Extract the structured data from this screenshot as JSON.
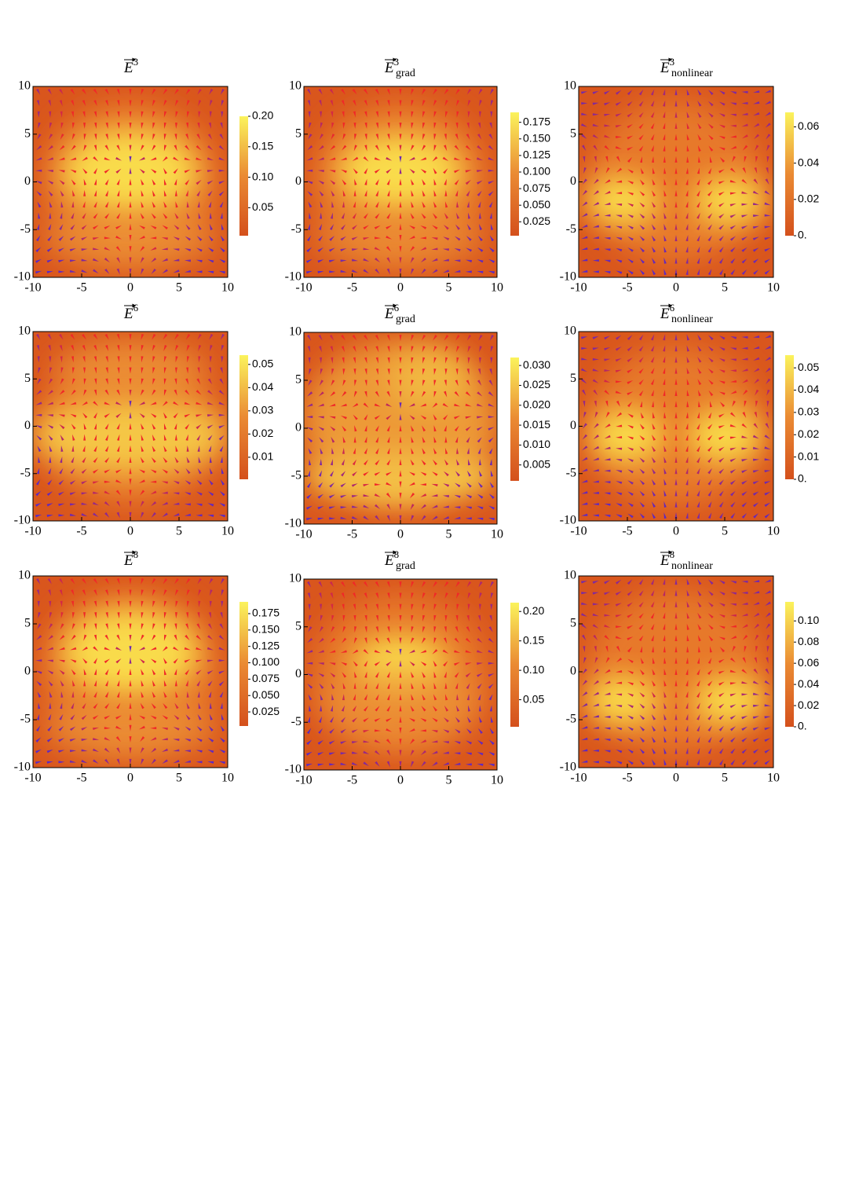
{
  "chart_data": [
    {
      "type": "vector-field",
      "title": {
        "text": "E",
        "sup": "3"
      },
      "xlim": [
        -10,
        10
      ],
      "ylim": [
        -10,
        10
      ],
      "xticks": [
        -10,
        -5,
        0,
        5,
        10
      ],
      "yticks": [
        -10,
        -5,
        0,
        5,
        10
      ],
      "colorbar": {
        "lim": [
          0.004,
          0.2
        ],
        "ticks": [
          0.05,
          {
            "value": 0.1,
            "label": "0.10"
          },
          0.15,
          {
            "value": 0.2,
            "label": "0.20"
          }
        ]
      }
    },
    {
      "type": "vector-field",
      "title": {
        "text": "E",
        "sup": "3",
        "sub": "grad"
      },
      "xlim": [
        -10,
        10
      ],
      "ylim": [
        -10,
        10
      ],
      "xticks": [
        -10,
        -5,
        0,
        5,
        10
      ],
      "yticks": [
        -10,
        -5,
        0,
        5,
        10
      ],
      "colorbar": {
        "lim": [
          0.004,
          0.19
        ],
        "ticks": [
          0.025,
          {
            "value": 0.05,
            "label": "0.050"
          },
          0.075,
          {
            "value": 0.1,
            "label": "0.100"
          },
          0.125,
          {
            "value": 0.15,
            "label": "0.150"
          },
          0.175
        ]
      }
    },
    {
      "type": "vector-field",
      "title": {
        "text": "E",
        "sup": "3",
        "sub": "nonlinear"
      },
      "xlim": [
        -10,
        10
      ],
      "ylim": [
        -10,
        10
      ],
      "xticks": [
        -10,
        -5,
        0,
        5,
        10
      ],
      "yticks": [
        -10,
        -5,
        0,
        5,
        10
      ],
      "colorbar": {
        "lim": [
          0,
          0.068
        ],
        "ticks": [
          {
            "value": 0,
            "label": "0."
          },
          0.02,
          0.04,
          0.06
        ]
      }
    },
    {
      "type": "vector-field",
      "title": {
        "text": "E",
        "sup": "6"
      },
      "xlim": [
        -10,
        10
      ],
      "ylim": [
        -10,
        10
      ],
      "xticks": [
        -10,
        -5,
        0,
        5,
        10
      ],
      "yticks": [
        -10,
        -5,
        0,
        5,
        10
      ],
      "colorbar": {
        "lim": [
          0.0005,
          0.054
        ],
        "ticks": [
          0.01,
          0.02,
          0.03,
          0.04,
          0.05
        ]
      }
    },
    {
      "type": "vector-field",
      "title": {
        "text": "E",
        "sup": "6",
        "sub": "grad"
      },
      "xlim": [
        -10,
        10
      ],
      "ylim": [
        -10,
        10
      ],
      "xticks": [
        -10,
        -5,
        0,
        5,
        10
      ],
      "yticks": [
        -10,
        -5,
        0,
        5,
        10
      ],
      "colorbar": {
        "lim": [
          0.001,
          0.032
        ],
        "ticks": [
          0.005,
          {
            "value": 0.01,
            "label": "0.010"
          },
          0.015,
          {
            "value": 0.02,
            "label": "0.020"
          },
          0.025,
          {
            "value": 0.03,
            "label": "0.030"
          }
        ]
      }
    },
    {
      "type": "vector-field",
      "title": {
        "text": "E",
        "sup": "6",
        "sub": "nonlinear"
      },
      "xlim": [
        -10,
        10
      ],
      "ylim": [
        -10,
        10
      ],
      "xticks": [
        -10,
        -5,
        0,
        5,
        10
      ],
      "yticks": [
        -10,
        -5,
        0,
        5,
        10
      ],
      "colorbar": {
        "lim": [
          0,
          0.0557
        ],
        "ticks": [
          {
            "value": 0,
            "label": "0."
          },
          0.01,
          0.02,
          0.03,
          0.04,
          0.05
        ]
      }
    },
    {
      "type": "vector-field",
      "title": {
        "text": "E",
        "sup": "8"
      },
      "xlim": [
        -10,
        10
      ],
      "ylim": [
        -10,
        10
      ],
      "xticks": [
        -10,
        -5,
        0,
        5,
        10
      ],
      "yticks": [
        -10,
        -5,
        0,
        5,
        10
      ],
      "colorbar": {
        "lim": [
          0.0035,
          0.193
        ],
        "ticks": [
          0.025,
          {
            "value": 0.05,
            "label": "0.050"
          },
          0.075,
          {
            "value": 0.1,
            "label": "0.100"
          },
          0.125,
          {
            "value": 0.15,
            "label": "0.150"
          },
          0.175
        ]
      }
    },
    {
      "type": "vector-field",
      "title": {
        "text": "E",
        "sup": "8",
        "sub": "grad"
      },
      "xlim": [
        -10,
        10
      ],
      "ylim": [
        -10,
        10
      ],
      "xticks": [
        -10,
        -5,
        0,
        5,
        10
      ],
      "yticks": [
        -10,
        -5,
        0,
        5,
        10
      ],
      "colorbar": {
        "lim": [
          0.004,
          0.215
        ],
        "ticks": [
          0.05,
          {
            "value": 0.1,
            "label": "0.10"
          },
          0.15,
          {
            "value": 0.2,
            "label": "0.20"
          }
        ]
      }
    },
    {
      "type": "vector-field",
      "title": {
        "text": "E",
        "sup": "8",
        "sub": "nonlinear"
      },
      "xlim": [
        -10,
        10
      ],
      "ylim": [
        -10,
        10
      ],
      "xticks": [
        -10,
        -5,
        0,
        5,
        10
      ],
      "yticks": [
        -10,
        -5,
        0,
        5,
        10
      ],
      "colorbar": {
        "lim": [
          0,
          0.118
        ],
        "ticks": [
          {
            "value": 0,
            "label": "0."
          },
          0.02,
          0.04,
          0.06,
          0.08,
          {
            "value": 0.1,
            "label": "0.10"
          }
        ]
      }
    }
  ]
}
